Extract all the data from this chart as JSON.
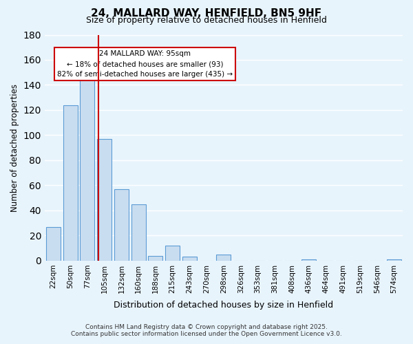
{
  "title": "24, MALLARD WAY, HENFIELD, BN5 9HF",
  "subtitle": "Size of property relative to detached houses in Henfield",
  "xlabel": "Distribution of detached houses by size in Henfield",
  "ylabel": "Number of detached properties",
  "bar_labels": [
    "22sqm",
    "50sqm",
    "77sqm",
    "105sqm",
    "132sqm",
    "160sqm",
    "188sqm",
    "215sqm",
    "243sqm",
    "270sqm",
    "298sqm",
    "326sqm",
    "353sqm",
    "381sqm",
    "408sqm",
    "436sqm",
    "464sqm",
    "491sqm",
    "519sqm",
    "546sqm",
    "574sqm"
  ],
  "bar_heights": [
    27,
    124,
    148,
    97,
    57,
    45,
    4,
    12,
    3,
    0,
    5,
    0,
    0,
    0,
    0,
    1,
    0,
    0,
    0,
    0,
    1
  ],
  "bar_color": "#c9ddf0",
  "bar_edge_color": "#5b9bd5",
  "property_line_x": 3.0,
  "property_line_label": "24 MALLARD WAY: 95sqm",
  "annotation_line1": "← 18% of detached houses are smaller (93)",
  "annotation_line2": "82% of semi-detached houses are larger (435) →",
  "annotation_box_color": "#cc0000",
  "ylim": [
    0,
    180
  ],
  "yticks": [
    0,
    20,
    40,
    60,
    80,
    100,
    120,
    140,
    160,
    180
  ],
  "bg_color": "#e8f4fc",
  "grid_color": "#ffffff",
  "footer_line1": "Contains HM Land Registry data © Crown copyright and database right 2025.",
  "footer_line2": "Contains public sector information licensed under the Open Government Licence v3.0."
}
